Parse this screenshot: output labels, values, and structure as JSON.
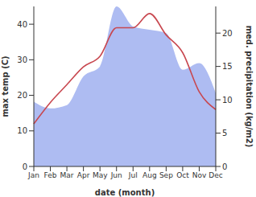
{
  "chart_data": {
    "type": "line",
    "x_label": "date (month)",
    "categories": [
      "Jan",
      "Feb",
      "Mar",
      "Apr",
      "May",
      "Jun",
      "Jul",
      "Aug",
      "Sep",
      "Oct",
      "Nov",
      "Dec"
    ],
    "series": [
      {
        "name": "max temp (C)",
        "type": "line",
        "color": "#c8474f",
        "values": [
          12,
          18,
          23,
          28,
          31,
          39,
          39,
          43,
          37,
          32,
          21,
          16
        ]
      },
      {
        "name": "med. precipitation (kg/m2)",
        "type": "area",
        "axis": "y2",
        "color": "#aebcf2",
        "values": [
          9.7,
          8.7,
          9.2,
          13.5,
          15,
          24,
          21,
          20.5,
          20,
          14.5,
          15.5,
          11
        ]
      }
    ],
    "ylim": [
      0,
      45
    ],
    "yticks": [
      0,
      10,
      20,
      30,
      40
    ],
    "y2lim": [
      0,
      24
    ],
    "y2ticks": [
      0,
      5,
      10,
      15,
      20
    ],
    "grid": false
  }
}
